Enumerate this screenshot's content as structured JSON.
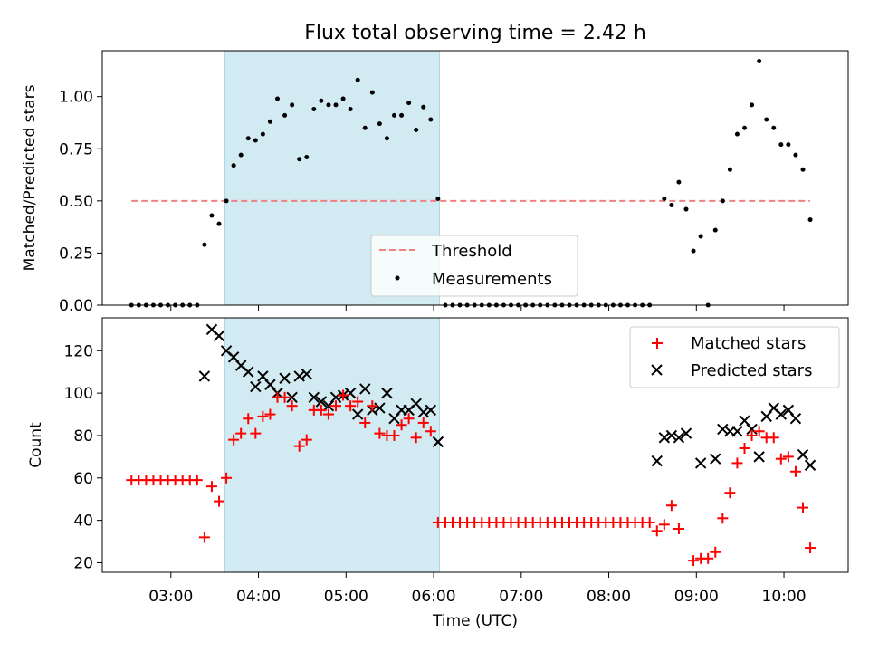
{
  "title": "Flux total observing time = 2.42 h",
  "xlabel": "Time (UTC)",
  "x_ticks": [
    "03:00",
    "04:00",
    "05:00",
    "06:00",
    "07:00",
    "08:00",
    "09:00",
    "10:00"
  ],
  "colors": {
    "threshold": "#f08080",
    "measurements": "#000000",
    "matched": "#ff0000",
    "predicted": "#000000",
    "window_fill": "#add8e6",
    "window_edge": "#add8e6"
  },
  "chart_data": [
    {
      "type": "scatter",
      "ylabel": "Matched/Predicted stars",
      "xlim": [
        "02:13",
        "10:44"
      ],
      "ylim": [
        0,
        1.22
      ],
      "y_ticks": [
        "0.00",
        "0.25",
        "0.50",
        "0.75",
        "1.00"
      ],
      "shaded_interval": [
        "03:37",
        "06:04"
      ],
      "threshold": {
        "label": "Threshold",
        "value": 0.5,
        "x": [
          "02:33",
          "10:18"
        ]
      },
      "legend": {
        "placement": "bottom-center",
        "entries": [
          "Threshold",
          "Measurements"
        ]
      },
      "series": [
        {
          "name": "Measurements",
          "marker": "dot",
          "points": [
            [
              "02:33",
              0.0
            ],
            [
              "02:38",
              0.0
            ],
            [
              "02:43",
              0.0
            ],
            [
              "02:48",
              0.0
            ],
            [
              "02:53",
              0.0
            ],
            [
              "02:58",
              0.0
            ],
            [
              "03:03",
              0.0
            ],
            [
              "03:08",
              0.0
            ],
            [
              "03:13",
              0.0
            ],
            [
              "03:18",
              0.0
            ],
            [
              "03:23",
              0.29
            ],
            [
              "03:28",
              0.43
            ],
            [
              "03:33",
              0.39
            ],
            [
              "03:38",
              0.5
            ],
            [
              "03:43",
              0.67
            ],
            [
              "03:48",
              0.72
            ],
            [
              "03:53",
              0.8
            ],
            [
              "03:58",
              0.79
            ],
            [
              "04:03",
              0.82
            ],
            [
              "04:08",
              0.88
            ],
            [
              "04:13",
              0.99
            ],
            [
              "04:18",
              0.91
            ],
            [
              "04:23",
              0.96
            ],
            [
              "04:28",
              0.7
            ],
            [
              "04:33",
              0.71
            ],
            [
              "04:38",
              0.94
            ],
            [
              "04:43",
              0.98
            ],
            [
              "04:48",
              0.96
            ],
            [
              "04:53",
              0.96
            ],
            [
              "04:58",
              0.99
            ],
            [
              "05:03",
              0.94
            ],
            [
              "05:08",
              1.08
            ],
            [
              "05:13",
              0.85
            ],
            [
              "05:18",
              1.02
            ],
            [
              "05:23",
              0.87
            ],
            [
              "05:28",
              0.8
            ],
            [
              "05:33",
              0.91
            ],
            [
              "05:38",
              0.91
            ],
            [
              "05:43",
              0.97
            ],
            [
              "05:48",
              0.84
            ],
            [
              "05:53",
              0.95
            ],
            [
              "05:58",
              0.89
            ],
            [
              "06:03",
              0.51
            ],
            [
              "06:08",
              0.0
            ],
            [
              "06:13",
              0.0
            ],
            [
              "06:18",
              0.0
            ],
            [
              "06:23",
              0.0
            ],
            [
              "06:28",
              0.0
            ],
            [
              "06:33",
              0.0
            ],
            [
              "06:38",
              0.0
            ],
            [
              "06:43",
              0.0
            ],
            [
              "06:48",
              0.0
            ],
            [
              "06:53",
              0.0
            ],
            [
              "06:58",
              0.0
            ],
            [
              "07:03",
              0.0
            ],
            [
              "07:08",
              0.0
            ],
            [
              "07:13",
              0.0
            ],
            [
              "07:18",
              0.0
            ],
            [
              "07:23",
              0.0
            ],
            [
              "07:28",
              0.0
            ],
            [
              "07:33",
              0.0
            ],
            [
              "07:38",
              0.0
            ],
            [
              "07:43",
              0.0
            ],
            [
              "07:48",
              0.0
            ],
            [
              "07:53",
              0.0
            ],
            [
              "07:58",
              0.0
            ],
            [
              "08:03",
              0.0
            ],
            [
              "08:08",
              0.0
            ],
            [
              "08:13",
              0.0
            ],
            [
              "08:18",
              0.0
            ],
            [
              "08:23",
              0.0
            ],
            [
              "08:28",
              0.0
            ],
            [
              "08:38",
              0.51
            ],
            [
              "08:43",
              0.48
            ],
            [
              "08:48",
              0.59
            ],
            [
              "08:53",
              0.46
            ],
            [
              "08:58",
              0.26
            ],
            [
              "09:03",
              0.33
            ],
            [
              "09:08",
              0.0
            ],
            [
              "09:13",
              0.36
            ],
            [
              "09:18",
              0.5
            ],
            [
              "09:23",
              0.65
            ],
            [
              "09:28",
              0.82
            ],
            [
              "09:33",
              0.85
            ],
            [
              "09:38",
              0.96
            ],
            [
              "09:43",
              1.17
            ],
            [
              "09:48",
              0.89
            ],
            [
              "09:53",
              0.85
            ],
            [
              "09:58",
              0.77
            ],
            [
              "10:03",
              0.77
            ],
            [
              "10:08",
              0.72
            ],
            [
              "10:13",
              0.65
            ],
            [
              "10:18",
              0.41
            ]
          ]
        }
      ]
    },
    {
      "type": "scatter",
      "ylabel": "Count",
      "xlim": [
        "02:13",
        "10:44"
      ],
      "ylim": [
        15.5,
        135.5
      ],
      "y_ticks": [
        "20",
        "40",
        "60",
        "80",
        "100",
        "120"
      ],
      "shaded_interval": [
        "03:37",
        "06:04"
      ],
      "legend": {
        "placement": "top-right",
        "entries": [
          "Matched stars",
          "Predicted stars"
        ]
      },
      "series": [
        {
          "name": "Matched stars",
          "marker": "plus",
          "points": [
            [
              "02:33",
              59
            ],
            [
              "02:38",
              59
            ],
            [
              "02:43",
              59
            ],
            [
              "02:48",
              59
            ],
            [
              "02:53",
              59
            ],
            [
              "02:58",
              59
            ],
            [
              "03:03",
              59
            ],
            [
              "03:08",
              59
            ],
            [
              "03:13",
              59
            ],
            [
              "03:18",
              59
            ],
            [
              "03:23",
              32
            ],
            [
              "03:28",
              56
            ],
            [
              "03:33",
              49
            ],
            [
              "03:38",
              60
            ],
            [
              "03:43",
              78
            ],
            [
              "03:48",
              81
            ],
            [
              "03:53",
              88
            ],
            [
              "03:58",
              81
            ],
            [
              "04:03",
              89
            ],
            [
              "04:08",
              90
            ],
            [
              "04:13",
              98
            ],
            [
              "04:18",
              98
            ],
            [
              "04:23",
              94
            ],
            [
              "04:28",
              75
            ],
            [
              "04:33",
              78
            ],
            [
              "04:38",
              92
            ],
            [
              "04:43",
              92
            ],
            [
              "04:48",
              90
            ],
            [
              "04:53",
              94
            ],
            [
              "04:58",
              99
            ],
            [
              "05:03",
              94
            ],
            [
              "05:08",
              96
            ],
            [
              "05:13",
              86
            ],
            [
              "05:18",
              94
            ],
            [
              "05:23",
              81
            ],
            [
              "05:28",
              80
            ],
            [
              "05:33",
              80
            ],
            [
              "05:38",
              85
            ],
            [
              "05:43",
              88
            ],
            [
              "05:48",
              79
            ],
            [
              "05:53",
              86
            ],
            [
              "05:58",
              82
            ],
            [
              "06:03",
              39
            ],
            [
              "06:08",
              39
            ],
            [
              "06:13",
              39
            ],
            [
              "06:18",
              39
            ],
            [
              "06:23",
              39
            ],
            [
              "06:28",
              39
            ],
            [
              "06:33",
              39
            ],
            [
              "06:38",
              39
            ],
            [
              "06:43",
              39
            ],
            [
              "06:48",
              39
            ],
            [
              "06:53",
              39
            ],
            [
              "06:58",
              39
            ],
            [
              "07:03",
              39
            ],
            [
              "07:08",
              39
            ],
            [
              "07:13",
              39
            ],
            [
              "07:18",
              39
            ],
            [
              "07:23",
              39
            ],
            [
              "07:28",
              39
            ],
            [
              "07:33",
              39
            ],
            [
              "07:38",
              39
            ],
            [
              "07:43",
              39
            ],
            [
              "07:48",
              39
            ],
            [
              "07:53",
              39
            ],
            [
              "07:58",
              39
            ],
            [
              "08:03",
              39
            ],
            [
              "08:08",
              39
            ],
            [
              "08:13",
              39
            ],
            [
              "08:18",
              39
            ],
            [
              "08:23",
              39
            ],
            [
              "08:28",
              39
            ],
            [
              "08:33",
              35
            ],
            [
              "08:38",
              38
            ],
            [
              "08:43",
              47
            ],
            [
              "08:48",
              36
            ],
            [
              "08:58",
              21
            ],
            [
              "09:03",
              22
            ],
            [
              "09:08",
              22
            ],
            [
              "09:13",
              25
            ],
            [
              "09:18",
              41
            ],
            [
              "09:23",
              53
            ],
            [
              "09:28",
              67
            ],
            [
              "09:33",
              74
            ],
            [
              "09:38",
              80
            ],
            [
              "09:43",
              82
            ],
            [
              "09:48",
              79
            ],
            [
              "09:53",
              79
            ],
            [
              "09:58",
              69
            ],
            [
              "10:03",
              70
            ],
            [
              "10:08",
              63
            ],
            [
              "10:13",
              46
            ],
            [
              "10:18",
              27
            ]
          ]
        },
        {
          "name": "Predicted stars",
          "marker": "x",
          "points": [
            [
              "03:23",
              108
            ],
            [
              "03:28",
              130
            ],
            [
              "03:33",
              127
            ],
            [
              "03:38",
              120
            ],
            [
              "03:43",
              117
            ],
            [
              "03:48",
              113
            ],
            [
              "03:53",
              110
            ],
            [
              "03:58",
              103
            ],
            [
              "04:03",
              108
            ],
            [
              "04:08",
              104
            ],
            [
              "04:13",
              100
            ],
            [
              "04:18",
              107
            ],
            [
              "04:23",
              98
            ],
            [
              "04:28",
              108
            ],
            [
              "04:33",
              109
            ],
            [
              "04:38",
              98
            ],
            [
              "04:43",
              96
            ],
            [
              "04:48",
              94
            ],
            [
              "04:53",
              98
            ],
            [
              "04:58",
              99
            ],
            [
              "05:03",
              100
            ],
            [
              "05:08",
              90
            ],
            [
              "05:13",
              102
            ],
            [
              "05:18",
              92
            ],
            [
              "05:23",
              93
            ],
            [
              "05:28",
              100
            ],
            [
              "05:33",
              88
            ],
            [
              "05:38",
              92
            ],
            [
              "05:43",
              92
            ],
            [
              "05:48",
              95
            ],
            [
              "05:53",
              91
            ],
            [
              "05:58",
              92
            ],
            [
              "06:03",
              77
            ],
            [
              "08:33",
              68
            ],
            [
              "08:38",
              79
            ],
            [
              "08:43",
              80
            ],
            [
              "08:48",
              79
            ],
            [
              "08:53",
              81
            ],
            [
              "09:03",
              67
            ],
            [
              "09:13",
              69
            ],
            [
              "09:18",
              83
            ],
            [
              "09:23",
              82
            ],
            [
              "09:28",
              82
            ],
            [
              "09:33",
              87
            ],
            [
              "09:38",
              83
            ],
            [
              "09:43",
              70
            ],
            [
              "09:48",
              89
            ],
            [
              "09:53",
              93
            ],
            [
              "09:58",
              90
            ],
            [
              "10:03",
              92
            ],
            [
              "10:08",
              88
            ],
            [
              "10:13",
              71
            ],
            [
              "10:18",
              66
            ]
          ]
        }
      ]
    }
  ]
}
